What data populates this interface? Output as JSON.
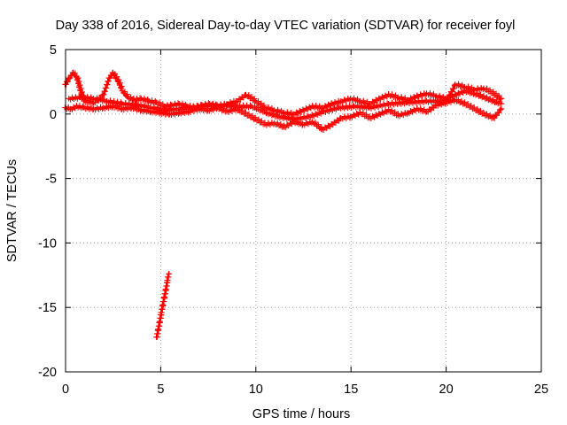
{
  "chart_data": {
    "type": "scatter",
    "title": "Day 338 of 2016, Sidereal Day-to-day VTEC variation (SDTVAR) for receiver foyl",
    "xlabel": "GPS time / hours",
    "ylabel": "SDTVAR / TECUs",
    "xlim": [
      0,
      25
    ],
    "ylim": [
      -20,
      5
    ],
    "xticks": [
      0,
      5,
      10,
      15,
      20,
      25
    ],
    "yticks": [
      5,
      0,
      -5,
      -10,
      -15,
      -20
    ],
    "xtick_labels": [
      "0",
      "5",
      "10",
      "15",
      "20",
      "25"
    ],
    "ytick_labels": [
      "5",
      "0",
      "-5",
      "-10",
      "-15",
      "-20"
    ],
    "grid": true,
    "marker": "+",
    "series_color": "#ff0000",
    "series": [
      {
        "name": "track-main-upper",
        "points": [
          [
            0.0,
            2.3
          ],
          [
            0.2,
            2.8
          ],
          [
            0.4,
            3.2
          ],
          [
            0.6,
            2.9
          ],
          [
            0.8,
            1.8
          ],
          [
            1.0,
            1.0
          ],
          [
            1.5,
            0.9
          ],
          [
            2.0,
            1.5
          ],
          [
            2.3,
            2.8
          ],
          [
            2.5,
            3.2
          ],
          [
            2.8,
            2.5
          ],
          [
            3.0,
            1.8
          ],
          [
            3.3,
            1.3
          ],
          [
            3.6,
            1.1
          ],
          [
            4.0,
            1.2
          ],
          [
            4.4,
            1.0
          ],
          [
            4.8,
            0.9
          ],
          [
            5.2,
            0.6
          ],
          [
            5.6,
            0.7
          ],
          [
            6.0,
            0.8
          ],
          [
            6.4,
            0.6
          ],
          [
            6.8,
            0.5
          ],
          [
            7.2,
            0.7
          ],
          [
            7.6,
            0.8
          ],
          [
            8.0,
            0.6
          ],
          [
            8.5,
            0.8
          ],
          [
            9.0,
            1.0
          ],
          [
            9.5,
            1.5
          ],
          [
            10.0,
            1.0
          ],
          [
            10.5,
            0.5
          ],
          [
            11.0,
            0.3
          ],
          [
            11.5,
            0.1
          ],
          [
            12.0,
            0.0
          ],
          [
            12.5,
            0.3
          ],
          [
            13.0,
            0.6
          ],
          [
            13.5,
            0.5
          ],
          [
            14.0,
            0.8
          ],
          [
            14.5,
            1.0
          ],
          [
            15.0,
            1.2
          ],
          [
            15.5,
            1.0
          ],
          [
            16.0,
            0.8
          ],
          [
            16.5,
            1.2
          ],
          [
            17.0,
            1.5
          ],
          [
            17.5,
            1.3
          ],
          [
            18.0,
            1.1
          ],
          [
            18.5,
            1.4
          ],
          [
            19.0,
            1.6
          ],
          [
            19.5,
            1.4
          ],
          [
            20.0,
            1.2
          ],
          [
            20.5,
            1.5
          ],
          [
            21.0,
            1.8
          ],
          [
            21.5,
            1.6
          ],
          [
            22.0,
            1.3
          ],
          [
            22.5,
            1.0
          ],
          [
            22.9,
            0.8
          ]
        ]
      },
      {
        "name": "track-main-lower",
        "points": [
          [
            0.0,
            0.5
          ],
          [
            0.3,
            0.4
          ],
          [
            0.6,
            0.6
          ],
          [
            1.0,
            0.5
          ],
          [
            1.5,
            0.4
          ],
          [
            2.0,
            0.5
          ],
          [
            2.5,
            0.6
          ],
          [
            3.0,
            0.4
          ],
          [
            3.5,
            0.5
          ],
          [
            4.0,
            0.3
          ],
          [
            4.5,
            0.2
          ],
          [
            5.0,
            0.1
          ],
          [
            5.5,
            0.0
          ],
          [
            6.0,
            0.1
          ],
          [
            6.5,
            0.2
          ],
          [
            7.0,
            0.4
          ],
          [
            7.5,
            0.3
          ],
          [
            8.0,
            0.5
          ],
          [
            8.5,
            0.2
          ],
          [
            9.0,
            0.4
          ],
          [
            9.5,
            0.0
          ],
          [
            10.0,
            -0.4
          ],
          [
            10.5,
            -0.8
          ],
          [
            11.0,
            -0.7
          ],
          [
            11.5,
            -1.0
          ],
          [
            12.0,
            -0.6
          ],
          [
            12.5,
            -0.8
          ],
          [
            13.0,
            -0.6
          ],
          [
            13.5,
            -1.2
          ],
          [
            14.0,
            -0.8
          ],
          [
            14.5,
            -0.3
          ],
          [
            15.0,
            -0.2
          ],
          [
            15.5,
            0.1
          ],
          [
            16.0,
            -0.3
          ],
          [
            16.5,
            0.0
          ],
          [
            17.0,
            0.3
          ],
          [
            17.5,
            -0.1
          ],
          [
            18.0,
            0.1
          ],
          [
            18.5,
            0.4
          ],
          [
            19.0,
            0.2
          ],
          [
            19.5,
            0.7
          ],
          [
            20.0,
            0.9
          ],
          [
            20.5,
            1.1
          ],
          [
            21.0,
            0.8
          ],
          [
            21.5,
            0.4
          ],
          [
            22.0,
            0.0
          ],
          [
            22.5,
            -0.3
          ],
          [
            22.9,
            0.4
          ]
        ]
      },
      {
        "name": "track-main-mid",
        "points": [
          [
            0.2,
            1.2
          ],
          [
            0.8,
            1.3
          ],
          [
            1.5,
            1.2
          ],
          [
            2.2,
            1.0
          ],
          [
            3.0,
            0.8
          ],
          [
            3.8,
            0.7
          ],
          [
            4.5,
            0.5
          ],
          [
            5.3,
            0.3
          ],
          [
            6.0,
            0.4
          ],
          [
            7.0,
            0.6
          ],
          [
            8.0,
            0.7
          ],
          [
            9.0,
            0.6
          ],
          [
            9.8,
            0.6
          ],
          [
            10.6,
            0.1
          ],
          [
            11.2,
            -0.2
          ],
          [
            12.0,
            -0.4
          ],
          [
            12.8,
            -0.2
          ],
          [
            13.6,
            0.2
          ],
          [
            14.4,
            0.5
          ],
          [
            15.2,
            0.6
          ],
          [
            16.0,
            0.5
          ],
          [
            17.0,
            0.8
          ],
          [
            18.0,
            0.9
          ],
          [
            19.0,
            1.0
          ],
          [
            20.0,
            1.0
          ],
          [
            20.5,
            2.3
          ],
          [
            21.0,
            2.1
          ],
          [
            21.5,
            1.9
          ],
          [
            22.0,
            2.0
          ],
          [
            22.5,
            1.6
          ],
          [
            22.9,
            1.2
          ]
        ]
      },
      {
        "name": "track-negative-segment",
        "points": [
          [
            4.8,
            -17.3
          ],
          [
            4.88,
            -16.7
          ],
          [
            4.96,
            -16.1
          ],
          [
            5.04,
            -15.4
          ],
          [
            5.12,
            -14.8
          ],
          [
            5.2,
            -14.2
          ],
          [
            5.28,
            -13.6
          ],
          [
            5.36,
            -12.9
          ],
          [
            5.42,
            -12.4
          ]
        ]
      }
    ]
  }
}
